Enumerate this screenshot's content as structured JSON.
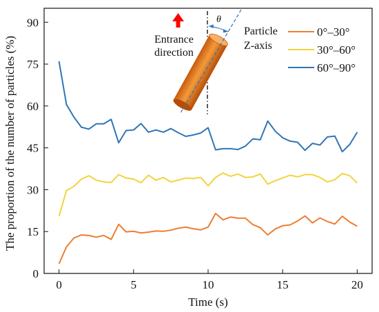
{
  "chart_data": {
    "type": "line",
    "xlabel": "Time (s)",
    "ylabel": "The proportion of the number of particles (%)",
    "xlim": [
      -1,
      21
    ],
    "ylim": [
      0,
      95
    ],
    "xticks": [
      0,
      5,
      10,
      15,
      20
    ],
    "yticks": [
      0,
      15,
      30,
      45,
      60,
      75,
      90
    ],
    "grid": false,
    "legend_position": "top-right",
    "x": [
      0,
      0.5,
      1,
      1.5,
      2,
      2.5,
      3,
      3.5,
      4,
      4.5,
      5,
      5.5,
      6,
      6.5,
      7,
      7.5,
      8,
      8.5,
      9,
      9.5,
      10,
      10.5,
      11,
      11.5,
      12,
      12.5,
      13,
      13.5,
      14,
      14.5,
      15,
      15.5,
      16,
      16.5,
      17,
      17.5,
      18,
      18.5,
      19,
      19.5,
      20
    ],
    "series": [
      {
        "name": "0°–30°",
        "color": "#ED7D31",
        "values": [
          3.5,
          9.5,
          12.7,
          13.8,
          13.6,
          13.0,
          13.6,
          12.2,
          17.6,
          14.9,
          15.1,
          14.5,
          14.8,
          15.2,
          15.1,
          15.5,
          16.2,
          16.6,
          16.0,
          15.6,
          16.6,
          21.5,
          19.2,
          20.2,
          19.8,
          19.8,
          17.5,
          16.4,
          13.8,
          15.9,
          17.1,
          17.4,
          18.8,
          20.6,
          18.1,
          19.9,
          18.6,
          17.7,
          20.5,
          18.4,
          16.9
        ]
      },
      {
        "name": "30°–60°",
        "color": "#F2D33C",
        "values": [
          20.5,
          29.7,
          31.2,
          33.8,
          35.0,
          33.4,
          32.8,
          32.6,
          35.4,
          34.2,
          33.8,
          32.5,
          35.2,
          33.4,
          34.4,
          32.8,
          33.4,
          34.2,
          34.0,
          34.4,
          31.4,
          34.4,
          36.0,
          34.8,
          35.6,
          34.4,
          34.6,
          35.6,
          32.0,
          33.2,
          34.2,
          35.2,
          34.6,
          35.4,
          35.4,
          34.4,
          32.8,
          33.6,
          35.8,
          35.0,
          32.4
        ]
      },
      {
        "name": "60°–90°",
        "color": "#2E75B6",
        "values": [
          76.0,
          60.5,
          56.0,
          52.4,
          51.7,
          53.6,
          53.6,
          55.2,
          46.8,
          51.2,
          51.4,
          53.7,
          50.6,
          51.4,
          50.6,
          51.9,
          50.4,
          49.1,
          49.6,
          50.3,
          52.2,
          44.3,
          44.7,
          44.7,
          44.4,
          45.6,
          48.2,
          47.9,
          54.6,
          51.0,
          48.6,
          47.4,
          47.0,
          44.1,
          46.6,
          46.0,
          48.9,
          49.2,
          43.6,
          46.2,
          50.6
        ]
      }
    ]
  },
  "annotation": {
    "entrance_line1": "Entrance",
    "entrance_line2": "direction",
    "axis_line1": "Particle",
    "axis_line2": "Z-axis",
    "theta": "θ",
    "arrow_color": "#FF0000",
    "cylinder_color": "#ED7D31"
  }
}
